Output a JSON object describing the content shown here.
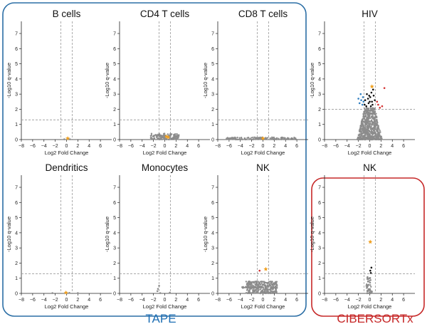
{
  "captions": {
    "left_group": "TAPE",
    "right_group": "CIBERSORTx"
  },
  "colors": {
    "tape_border": "#2b6ea5",
    "cibersortx_border": "#c62828",
    "points_gray": "#8c8c8c",
    "points_black": "#111111",
    "points_blue": "#2f7fc1",
    "points_red": "#d32f2f",
    "highlight_orange": "#f0a020",
    "guide_lines": "#999999"
  },
  "chart_data": [
    {
      "type": "scatter",
      "title": "B cells",
      "group": "TAPE",
      "xlabel": "Log2 Fold Change",
      "ylabel": "-Log10 q-value",
      "xlim": [
        -8,
        8
      ],
      "ylim": [
        0,
        7.8
      ],
      "xticks": [
        -8,
        -6,
        -4,
        -2,
        0,
        2,
        4,
        6
      ],
      "yticks": [
        0,
        1,
        2,
        3,
        4,
        5,
        6,
        7
      ],
      "vlines": [
        -1,
        1
      ],
      "hline": 1.3,
      "series": [
        {
          "color": "gray",
          "points": [
            [
              -0.4,
              0.02
            ],
            [
              0.3,
              0.03
            ],
            [
              0.6,
              0.02
            ]
          ]
        },
        {
          "color": "orange",
          "points": [
            [
              0.2,
              0.08
            ]
          ]
        }
      ]
    },
    {
      "type": "scatter",
      "title": "CD4 T cells",
      "group": "TAPE",
      "xlabel": "Log2 Fold Change",
      "ylabel": "-Log10 q-value",
      "xlim": [
        -8,
        8
      ],
      "ylim": [
        0,
        7.8
      ],
      "xticks": [
        -8,
        -6,
        -4,
        -2,
        0,
        2,
        4,
        6
      ],
      "yticks": [
        0,
        1,
        2,
        3,
        4,
        5,
        6,
        7
      ],
      "vlines": [
        -1,
        1
      ],
      "hline": 1.3,
      "series": [
        {
          "color": "gray",
          "cloud": {
            "x": [
              -2.5,
              2.5
            ],
            "y": [
              0.0,
              0.4
            ],
            "n": 140
          }
        },
        {
          "color": "orange",
          "points": [
            [
              0.3,
              0.2
            ],
            [
              0.6,
              0.15
            ]
          ]
        }
      ]
    },
    {
      "type": "scatter",
      "title": "CD8 T cells",
      "group": "TAPE",
      "xlabel": "Log2 Fold Change",
      "ylabel": "-Log10 q-value",
      "xlim": [
        -8,
        8
      ],
      "ylim": [
        0,
        7.8
      ],
      "xticks": [
        -8,
        -6,
        -4,
        -2,
        0,
        2,
        4,
        6
      ],
      "yticks": [
        0,
        1,
        2,
        3,
        4,
        5,
        6,
        7
      ],
      "vlines": [
        -1,
        1
      ],
      "hline": 1.3,
      "series": [
        {
          "color": "gray",
          "cloud": {
            "x": [
              -6.5,
              6.0
            ],
            "y": [
              0.0,
              0.15
            ],
            "n": 120
          }
        },
        {
          "color": "orange",
          "points": [
            [
              0.0,
              0.08
            ]
          ]
        }
      ]
    },
    {
      "type": "scatter",
      "title": "HIV",
      "group": "CIBERSORTx",
      "xlabel": "Log2 Fold Change",
      "ylabel": "-Log10 q-value",
      "xlim": [
        -8,
        8
      ],
      "ylim": [
        0,
        7.8
      ],
      "xticks": [
        -8,
        -6,
        -4,
        -2,
        0,
        2,
        4,
        6
      ],
      "yticks": [
        0,
        1,
        2,
        3,
        4,
        5,
        6,
        7
      ],
      "vlines": [
        -1,
        1
      ],
      "hline": 2.0,
      "series": [
        {
          "color": "gray",
          "cloud": {
            "x": [
              -2.2,
              2.2
            ],
            "y": [
              0.0,
              2.1
            ],
            "n": 700,
            "tapered": true
          }
        },
        {
          "color": "black",
          "points": [
            [
              -0.8,
              2.6
            ],
            [
              -0.5,
              3.0
            ],
            [
              -0.2,
              2.4
            ],
            [
              0.1,
              2.8
            ],
            [
              0.4,
              2.5
            ],
            [
              0.7,
              2.9
            ],
            [
              -0.6,
              2.2
            ],
            [
              0.2,
              2.2
            ],
            [
              0.5,
              2.3
            ],
            [
              -0.3,
              2.7
            ],
            [
              0.9,
              2.6
            ],
            [
              0.6,
              3.3
            ],
            [
              -0.9,
              2.3
            ],
            [
              0.0,
              2.5
            ],
            [
              0.3,
              3.1
            ],
            [
              -0.1,
              2.9
            ]
          ]
        },
        {
          "color": "blue",
          "points": [
            [
              -1.5,
              2.6
            ],
            [
              -1.2,
              2.8
            ],
            [
              -1.8,
              2.4
            ],
            [
              -1.3,
              2.3
            ],
            [
              -2.0,
              2.7
            ],
            [
              -1.6,
              3.0
            ],
            [
              -1.1,
              2.5
            ]
          ]
        },
        {
          "color": "red",
          "points": [
            [
              1.5,
              2.3
            ],
            [
              1.8,
              2.1
            ],
            [
              2.2,
              2.2
            ],
            [
              1.3,
              2.5
            ],
            [
              2.6,
              3.4
            ]
          ]
        },
        {
          "color": "orange",
          "points": [
            [
              0.4,
              3.5
            ]
          ]
        }
      ]
    },
    {
      "type": "scatter",
      "title": "Dendritics",
      "group": "TAPE",
      "xlabel": "Log2 Fold Change",
      "ylabel": "-Log10 q-value",
      "xlim": [
        -8,
        8
      ],
      "ylim": [
        0,
        7.8
      ],
      "xticks": [
        -8,
        -6,
        -4,
        -2,
        0,
        2,
        4,
        6
      ],
      "yticks": [
        0,
        1,
        2,
        3,
        4,
        5,
        6,
        7
      ],
      "vlines": [
        -1,
        1
      ],
      "hline": 1.3,
      "series": [
        {
          "color": "gray",
          "points": [
            [
              -2.5,
              0.02
            ],
            [
              0.5,
              0.03
            ],
            [
              2.0,
              0.02
            ]
          ]
        },
        {
          "color": "orange",
          "points": [
            [
              -0.1,
              0.05
            ]
          ]
        }
      ]
    },
    {
      "type": "scatter",
      "title": "Monocytes",
      "group": "TAPE",
      "xlabel": "Log2 Fold Change",
      "ylabel": "-Log10 q-value",
      "xlim": [
        -8,
        8
      ],
      "ylim": [
        0,
        7.8
      ],
      "xticks": [
        -8,
        -6,
        -4,
        -2,
        0,
        2,
        4,
        6
      ],
      "yticks": [
        0,
        1,
        2,
        3,
        4,
        5,
        6,
        7
      ],
      "vlines": [
        -1,
        1
      ],
      "hline": 1.3,
      "series": [
        {
          "color": "gray",
          "points": [
            [
              -1.2,
              0.3
            ],
            [
              -1.0,
              0.5
            ],
            [
              -1.3,
              0.15
            ],
            [
              0.9,
              0.05
            ],
            [
              -0.8,
              0.02
            ]
          ]
        }
      ]
    },
    {
      "type": "scatter",
      "title": "NK",
      "group": "TAPE",
      "xlabel": "Log2 Fold Change",
      "ylabel": "-Log10 q-value",
      "xlim": [
        -8,
        8
      ],
      "ylim": [
        0,
        7.8
      ],
      "xticks": [
        -8,
        -6,
        -4,
        -2,
        0,
        2,
        4,
        6
      ],
      "yticks": [
        0,
        1,
        2,
        3,
        4,
        5,
        6,
        7
      ],
      "vlines": [
        -1,
        1
      ],
      "hline": 1.3,
      "series": [
        {
          "color": "gray",
          "cloud": {
            "x": [
              -3.0,
              2.5
            ],
            "y": [
              0.0,
              0.8
            ],
            "n": 300
          }
        },
        {
          "color": "gray",
          "cloud": {
            "x": [
              -4.0,
              -0.5
            ],
            "y": [
              0.35,
              0.45
            ],
            "n": 40
          }
        },
        {
          "color": "red",
          "points": [
            [
              -0.6,
              1.5
            ]
          ]
        },
        {
          "color": "orange",
          "points": [
            [
              0.5,
              1.6
            ]
          ]
        }
      ]
    },
    {
      "type": "scatter",
      "title": "NK",
      "group": "CIBERSORTx",
      "xlabel": "Log2 Fold Change",
      "ylabel": "-Log10 q-value",
      "xlim": [
        -8,
        8
      ],
      "ylim": [
        0,
        7.8
      ],
      "xticks": [
        -8,
        -6,
        -4,
        -2,
        0,
        2,
        4,
        6
      ],
      "yticks": [
        0,
        1,
        2,
        3,
        4,
        5,
        6,
        7
      ],
      "vlines": [
        -1,
        1
      ],
      "hline": 1.3,
      "series": [
        {
          "color": "gray",
          "cloud": {
            "x": [
              -0.8,
              0.5
            ],
            "y": [
              0.0,
              1.1
            ],
            "n": 60,
            "tapered": true
          }
        },
        {
          "color": "black",
          "points": [
            [
              0.1,
              1.5
            ],
            [
              0.3,
              1.7
            ],
            [
              0.2,
              1.35
            ]
          ]
        },
        {
          "color": "orange",
          "points": [
            [
              0.1,
              3.4
            ]
          ]
        }
      ]
    }
  ]
}
